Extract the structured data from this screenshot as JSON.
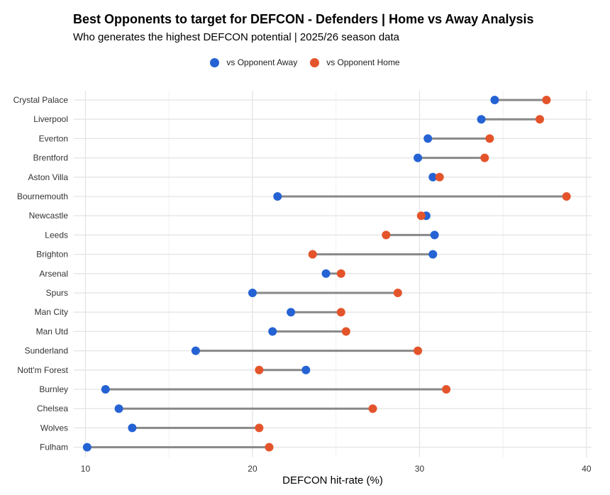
{
  "chart_data": {
    "type": "dumbbell",
    "title": "Best Opponents to target for DEFCON - Defenders | Home vs Away Analysis",
    "subtitle": "Who generates the highest DEFCON potential | 2025/26 season data",
    "xlabel": "DEFCON hit-rate (%)",
    "xlim": [
      9.3,
      40.3
    ],
    "xticks": [
      10,
      20,
      30,
      40
    ],
    "grid": true,
    "legend_position": "top",
    "series": [
      {
        "name": "vs Opponent Away",
        "color": "#2563d4"
      },
      {
        "name": "vs Opponent Home",
        "color": "#e4542b"
      }
    ],
    "categories": [
      "Crystal Palace",
      "Liverpool",
      "Everton",
      "Brentford",
      "Aston Villa",
      "Bournemouth",
      "Newcastle",
      "Leeds",
      "Brighton",
      "Arsenal",
      "Spurs",
      "Man City",
      "Man Utd",
      "Sunderland",
      "Nott'm Forest",
      "Burnley",
      "Chelsea",
      "Wolves",
      "Fulham"
    ],
    "away": [
      34.5,
      33.7,
      30.5,
      29.9,
      30.8,
      21.5,
      30.4,
      30.9,
      30.8,
      24.4,
      20.0,
      22.3,
      21.2,
      16.6,
      23.2,
      11.2,
      12.0,
      12.8,
      10.1
    ],
    "home": [
      37.6,
      37.2,
      34.2,
      33.9,
      31.2,
      38.8,
      30.1,
      28.0,
      23.6,
      25.3,
      28.7,
      25.3,
      25.6,
      29.9,
      20.4,
      31.6,
      27.2,
      20.4,
      21.0
    ]
  }
}
